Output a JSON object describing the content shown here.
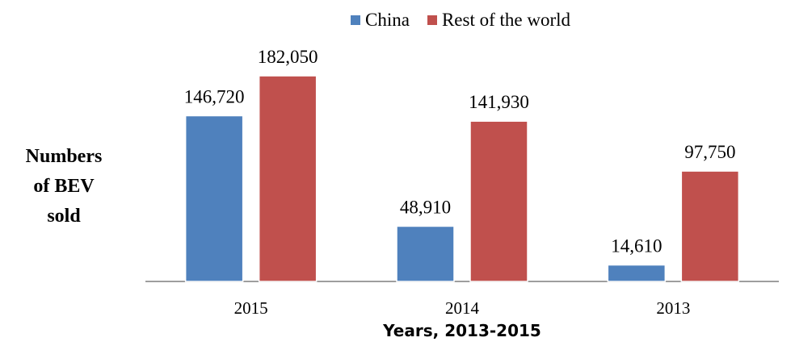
{
  "chart_data": {
    "type": "bar",
    "categories": [
      "2015",
      "2014",
      "2013"
    ],
    "series": [
      {
        "name": "China",
        "color": "#4F81BD",
        "values": [
          146720,
          48910,
          14610
        ],
        "labels": [
          "146,720",
          "48,910",
          "14,610"
        ]
      },
      {
        "name": "Rest of the world",
        "color": "#C0504D",
        "values": [
          182050,
          141930,
          97750
        ],
        "labels": [
          "182,050",
          "141,930",
          "97,750"
        ]
      }
    ],
    "xlabel": "Years, 2013-2015",
    "ylabel": "Numbers\nof BEV\nsold",
    "ylim": [
      0,
      200000
    ],
    "grid": false,
    "legend_position": "top"
  }
}
